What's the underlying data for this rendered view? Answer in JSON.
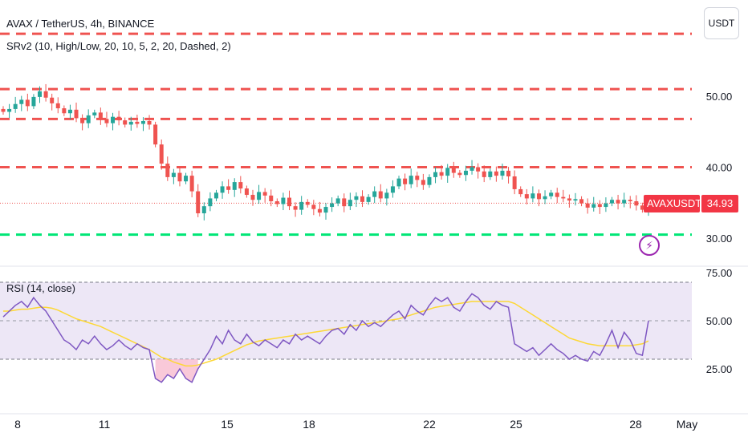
{
  "legend": {
    "symbol": "AVAX / TetherUS, 4h, BINANCE",
    "indicator": "SRv2 (10, High/Low, 20, 10, 5, 2, 20, Dashed, 2)",
    "rsi": "RSI (14, close)"
  },
  "currency_button": "USDT",
  "last_price_tag": {
    "symbol": "AVAXUSDT",
    "price": "34.93"
  },
  "icons": {
    "alert": "lightning-bolt-icon"
  },
  "colors": {
    "up": "#26a69a",
    "down": "#ef5350",
    "resistance": "#ef5350",
    "support": "#00e676",
    "rsi_line": "#7e57c2",
    "rsi_ma": "#fdd835",
    "rsi_band": "#ede7f6",
    "oversold_fill": "#f8bbd0"
  },
  "chart_data": [
    {
      "type": "candlestick",
      "x_ticks": [
        "8",
        "11",
        "15",
        "18",
        "22",
        "25",
        "28",
        "May"
      ],
      "y_ticks": [
        "30.00",
        "40.00",
        "50.00"
      ],
      "ylim": [
        27.5,
        61
      ],
      "resistance_levels": [
        58.8,
        51.0,
        46.8,
        40.0
      ],
      "support_levels": [
        30.5
      ],
      "last_price": 34.93,
      "close": [
        47.8,
        48.2,
        48.9,
        49.5,
        48.6,
        49.9,
        50.7,
        49.8,
        49.0,
        48.3,
        47.6,
        48.1,
        46.9,
        46.2,
        47.3,
        47.7,
        46.8,
        46.2,
        47.1,
        46.6,
        46.0,
        46.4,
        46.1,
        46.5,
        46.0,
        43.2,
        40.5,
        38.6,
        39.2,
        38.0,
        38.8,
        36.6,
        33.5,
        34.5,
        35.6,
        36.4,
        37.3,
        36.8,
        37.9,
        37.0,
        36.1,
        35.4,
        36.5,
        36.0,
        35.2,
        34.8,
        35.7,
        34.5,
        34.0,
        35.1,
        34.7,
        34.1,
        33.6,
        34.4,
        34.9,
        35.6,
        34.5,
        35.4,
        35.9,
        35.1,
        35.8,
        36.6,
        35.6,
        36.4,
        37.3,
        38.4,
        37.6,
        38.8,
        38.2,
        37.5,
        38.6,
        39.3,
        38.8,
        39.9,
        39.2,
        38.9,
        39.5,
        40.0,
        39.4,
        38.6,
        39.4,
        38.8,
        39.5,
        38.7,
        36.9,
        36.2,
        35.6,
        36.3,
        35.5,
        35.9,
        36.4,
        35.8,
        35.6,
        35.3,
        35.5,
        34.9,
        34.3,
        34.8,
        34.4,
        34.9,
        35.4,
        34.9,
        35.4,
        35.2,
        34.6,
        34.0,
        34.93
      ],
      "rsi": {
        "ylim": [
          15,
          75
        ],
        "y_ticks": [
          "25.00",
          "50.00",
          "75.00"
        ],
        "bands": [
          30,
          70
        ],
        "midline": 50,
        "values": [
          52,
          55,
          58,
          60,
          57,
          62,
          58,
          55,
          50,
          45,
          40,
          38,
          35,
          40,
          38,
          42,
          38,
          35,
          37,
          40,
          37,
          35,
          38,
          36,
          35,
          20,
          18,
          22,
          20,
          25,
          20,
          18,
          25,
          30,
          35,
          42,
          38,
          45,
          40,
          38,
          43,
          39,
          37,
          40,
          38,
          36,
          40,
          38,
          43,
          40,
          42,
          40,
          38,
          42,
          45,
          46,
          43,
          48,
          45,
          50,
          47,
          49,
          47,
          50,
          53,
          55,
          51,
          58,
          55,
          53,
          58,
          62,
          60,
          62,
          57,
          55,
          60,
          64,
          62,
          58,
          56,
          60,
          58,
          57,
          38,
          36,
          34,
          36,
          32,
          35,
          38,
          35,
          33,
          30,
          32,
          30,
          29,
          34,
          32,
          38,
          45,
          36,
          44,
          40,
          33,
          32,
          50
        ],
        "ma_values": [
          55,
          55,
          55.5,
          56,
          56,
          56.5,
          57,
          57,
          56.5,
          55.5,
          54,
          52.5,
          51,
          50,
          49,
          48,
          47,
          45.5,
          44,
          42.5,
          41,
          39.5,
          38,
          36.5,
          35,
          33,
          31,
          30,
          28.5,
          27.5,
          26.5,
          26.5,
          27,
          28,
          29,
          30,
          31.5,
          33,
          34.5,
          36,
          37.5,
          38.5,
          39.5,
          40,
          40.5,
          41,
          41.5,
          42,
          42.5,
          43,
          43.5,
          44,
          44.5,
          45,
          45.5,
          46,
          46.5,
          47,
          47.5,
          48,
          48.5,
          49,
          49.5,
          50,
          50.5,
          51,
          52,
          53,
          54,
          55,
          56,
          57,
          57.5,
          58,
          58.5,
          59,
          59.5,
          60,
          60,
          60,
          60,
          60,
          60,
          60,
          59,
          57,
          55,
          53,
          51,
          49,
          47,
          45,
          43,
          41,
          40,
          39,
          38,
          37.5,
          37,
          37,
          37,
          37,
          37,
          37,
          37.5,
          38,
          39.5
        ]
      }
    }
  ]
}
